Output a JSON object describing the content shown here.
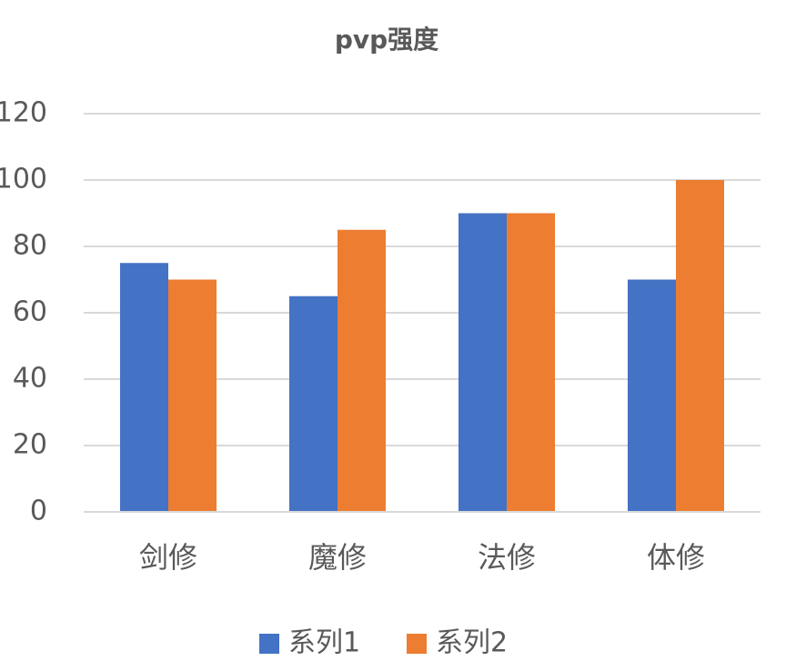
{
  "chart_data": {
    "type": "bar",
    "title": "pvp强度",
    "categories": [
      "剑修",
      "魔修",
      "法修",
      "体修"
    ],
    "series": [
      {
        "name": "系列1",
        "color": "#4472c4",
        "values": [
          75,
          65,
          90,
          70
        ]
      },
      {
        "name": "系列2",
        "color": "#ed7d31",
        "values": [
          70,
          85,
          90,
          100
        ]
      }
    ],
    "ylim": [
      0,
      120
    ],
    "yticks": [
      0,
      20,
      40,
      60,
      80,
      100,
      120
    ],
    "grid": true,
    "legend": "bottom"
  }
}
